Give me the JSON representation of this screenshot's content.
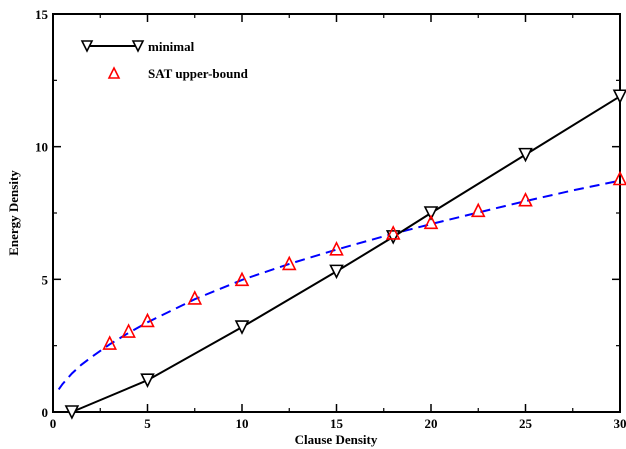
{
  "chart_data": {
    "type": "line",
    "title": "",
    "xlabel": "Clause Density",
    "ylabel": "Energy Density",
    "xlim": [
      0,
      30
    ],
    "ylim": [
      0,
      15
    ],
    "x_ticks": [
      0,
      5,
      10,
      15,
      20,
      25,
      30
    ],
    "y_ticks": [
      0,
      5,
      10,
      15
    ],
    "grid": false,
    "legend_position": "top-left",
    "series": [
      {
        "name": "minimal",
        "style": "solid line with downward-triangle markers",
        "color": "#000000",
        "x": [
          1,
          5,
          10,
          15,
          18,
          20,
          25,
          30
        ],
        "y": [
          0.0,
          1.2,
          3.2,
          5.3,
          6.6,
          7.5,
          9.7,
          11.9
        ]
      },
      {
        "name": "SAT upper-bound",
        "style": "upward-triangle markers",
        "color": "#ff0000",
        "x": [
          3,
          4,
          5,
          7.5,
          10,
          12.5,
          15,
          18,
          20,
          22.5,
          25,
          30
        ],
        "y": [
          2.6,
          3.05,
          3.45,
          4.3,
          5.0,
          5.6,
          6.15,
          6.75,
          7.15,
          7.6,
          8.0,
          8.8
        ]
      }
    ],
    "fit_curve": {
      "style": "dashed",
      "color": "#0000ff",
      "x": [
        0.3,
        0.5,
        0.75,
        1,
        1.5,
        2,
        3,
        4,
        5,
        7.5,
        10,
        12.5,
        15,
        18,
        20,
        22.5,
        25,
        27.5,
        30
      ],
      "y": [
        0.85,
        1.05,
        1.25,
        1.45,
        1.78,
        2.05,
        2.55,
        2.98,
        3.38,
        4.25,
        4.98,
        5.58,
        6.12,
        6.72,
        7.08,
        7.52,
        7.95,
        8.35,
        8.72
      ]
    }
  }
}
